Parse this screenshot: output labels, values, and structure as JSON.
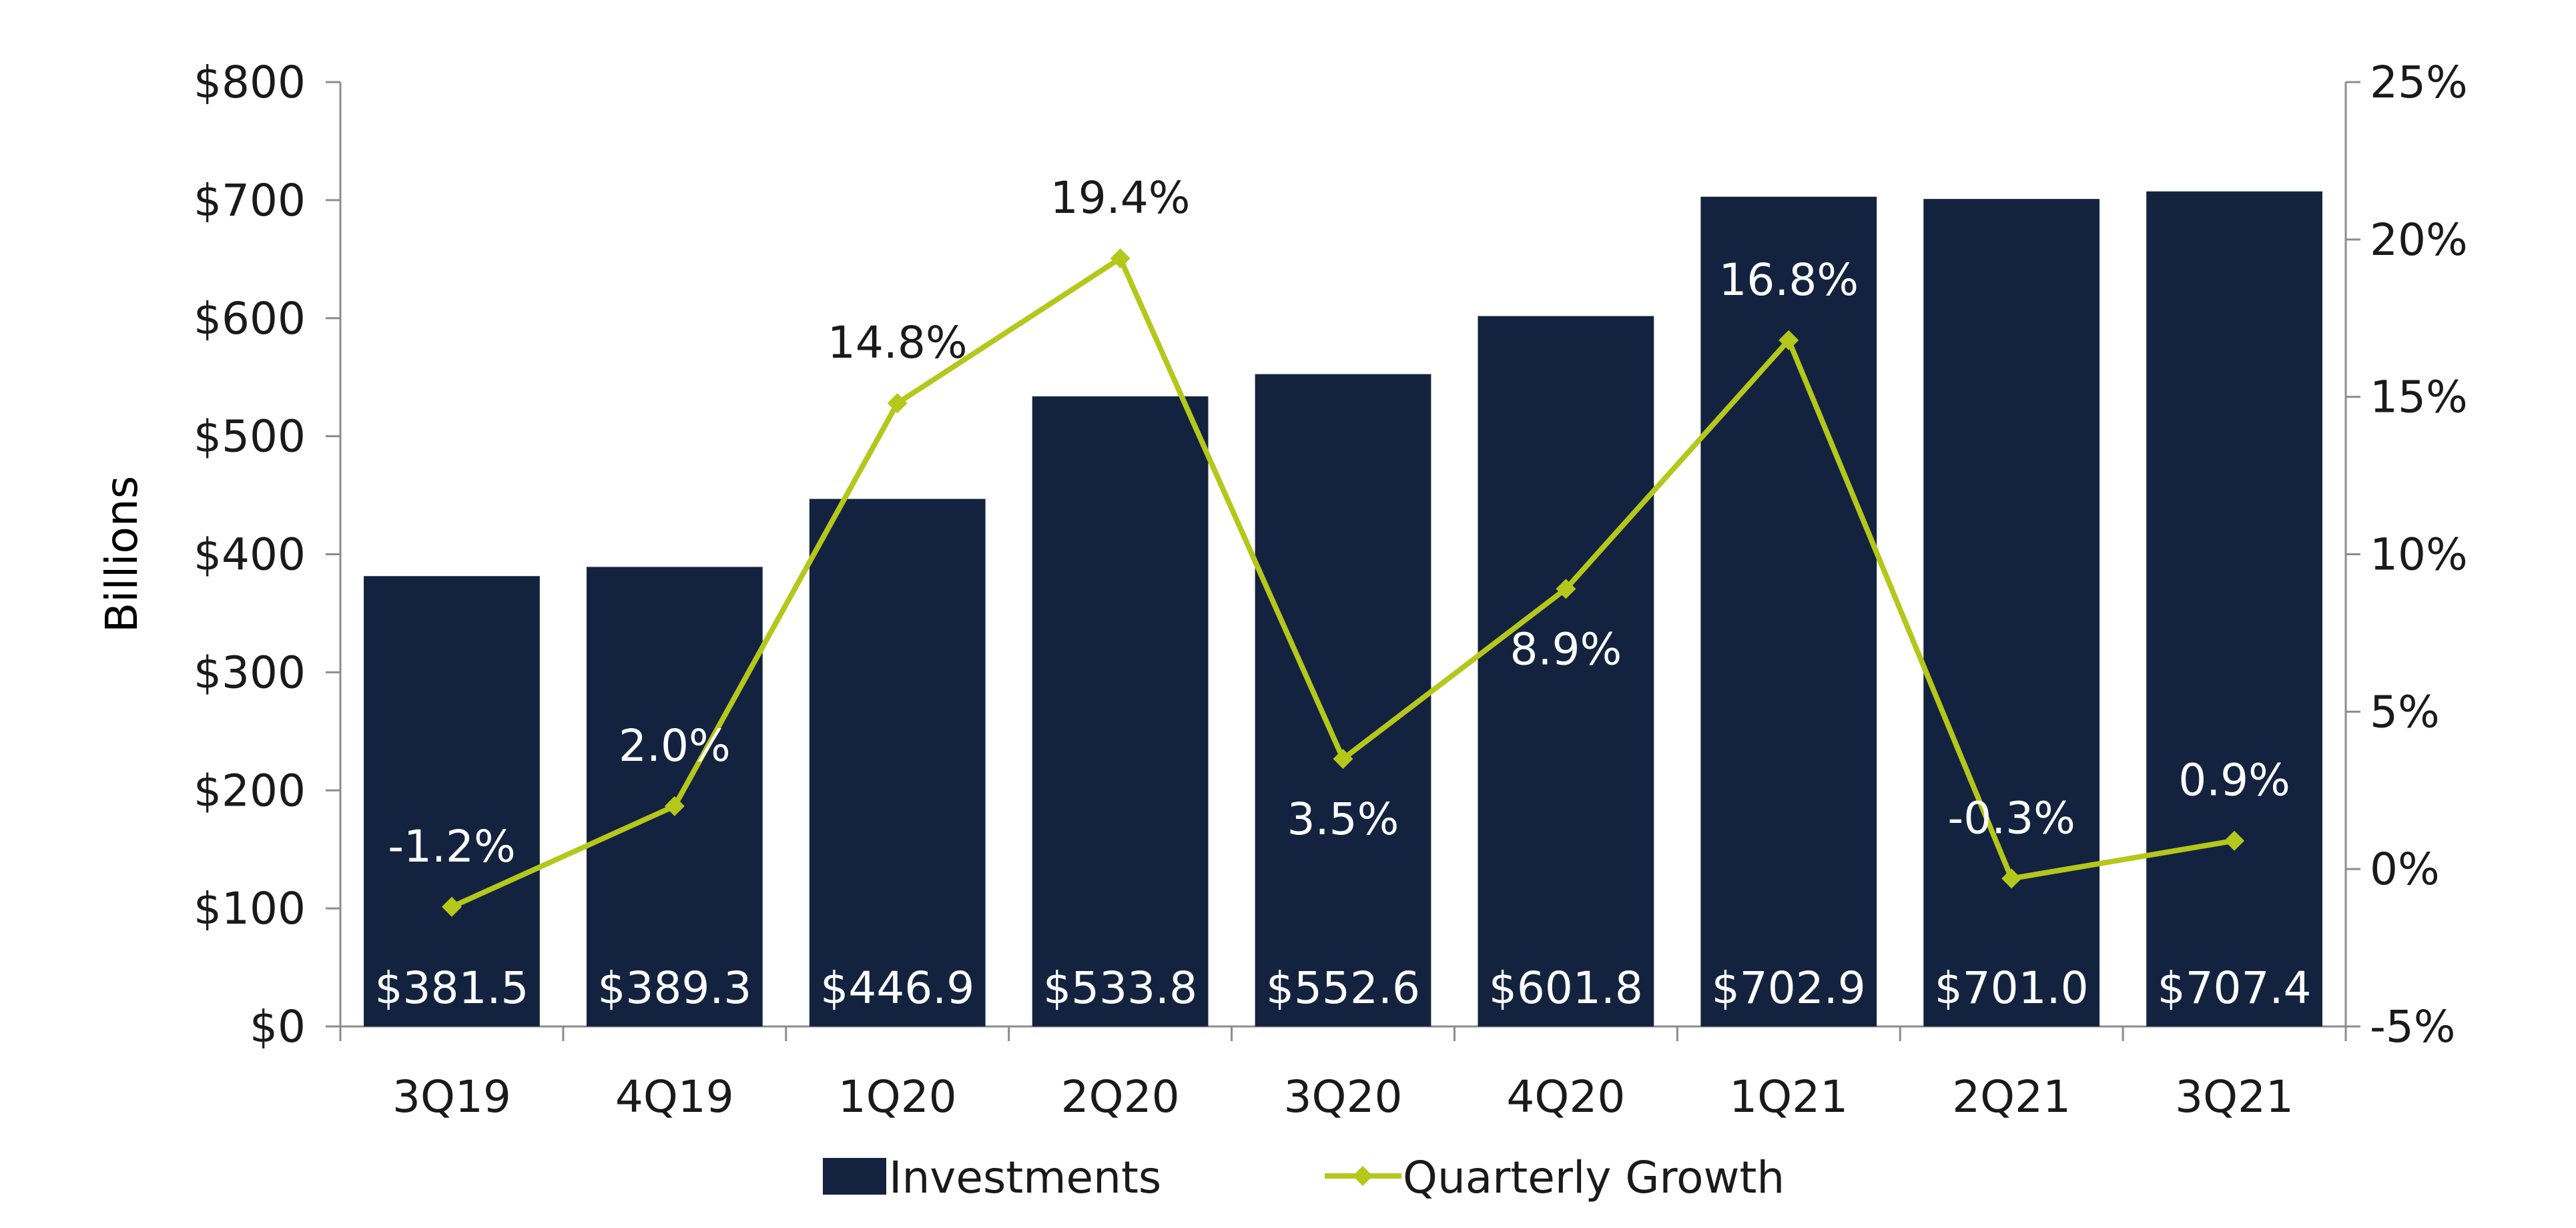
{
  "chart_data": {
    "type": "bar",
    "categories": [
      "3Q19",
      "4Q19",
      "1Q20",
      "2Q20",
      "3Q20",
      "4Q20",
      "1Q21",
      "2Q21",
      "3Q21"
    ],
    "series": [
      {
        "name": "Investments",
        "type": "bar",
        "axis": "left",
        "color": "#13233f",
        "values": [
          381.5,
          389.3,
          446.9,
          533.8,
          552.6,
          601.8,
          702.9,
          701.0,
          707.4
        ],
        "labels": [
          "$381.5",
          "$389.3",
          "$446.9",
          "$533.8",
          "$552.6",
          "$601.8",
          "$702.9",
          "$701.0",
          "$707.4"
        ]
      },
      {
        "name": "Quarterly Growth",
        "type": "line",
        "axis": "right",
        "color": "#b5c71a",
        "marker": "diamond",
        "values": [
          -1.2,
          2.0,
          14.8,
          19.4,
          3.5,
          8.9,
          16.8,
          -0.3,
          0.9
        ],
        "labels": [
          "-1.2%",
          "2.0%",
          "14.8%",
          "19.4%",
          "3.5%",
          "8.9%",
          "16.8%",
          "-0.3%",
          "0.9%"
        ],
        "label_side": [
          "above",
          "above",
          "above",
          "above",
          "below",
          "below",
          "above",
          "above",
          "above"
        ]
      }
    ],
    "ylabel": "Billions",
    "xlabel": "",
    "ylim": [
      0,
      800
    ],
    "y_ticks": [
      0,
      100,
      200,
      300,
      400,
      500,
      600,
      700,
      800
    ],
    "y_tick_labels": [
      "$0",
      "$100",
      "$200",
      "$300",
      "$400",
      "$500",
      "$600",
      "$700",
      "$800"
    ],
    "y2lim": [
      -5,
      25
    ],
    "y2_ticks": [
      -5,
      0,
      5,
      10,
      15,
      20,
      25
    ],
    "y2_tick_labels": [
      "-5%",
      "0%",
      "5%",
      "10%",
      "15%",
      "20%",
      "25%"
    ],
    "grid": false,
    "legend_position": "bottom-center"
  }
}
